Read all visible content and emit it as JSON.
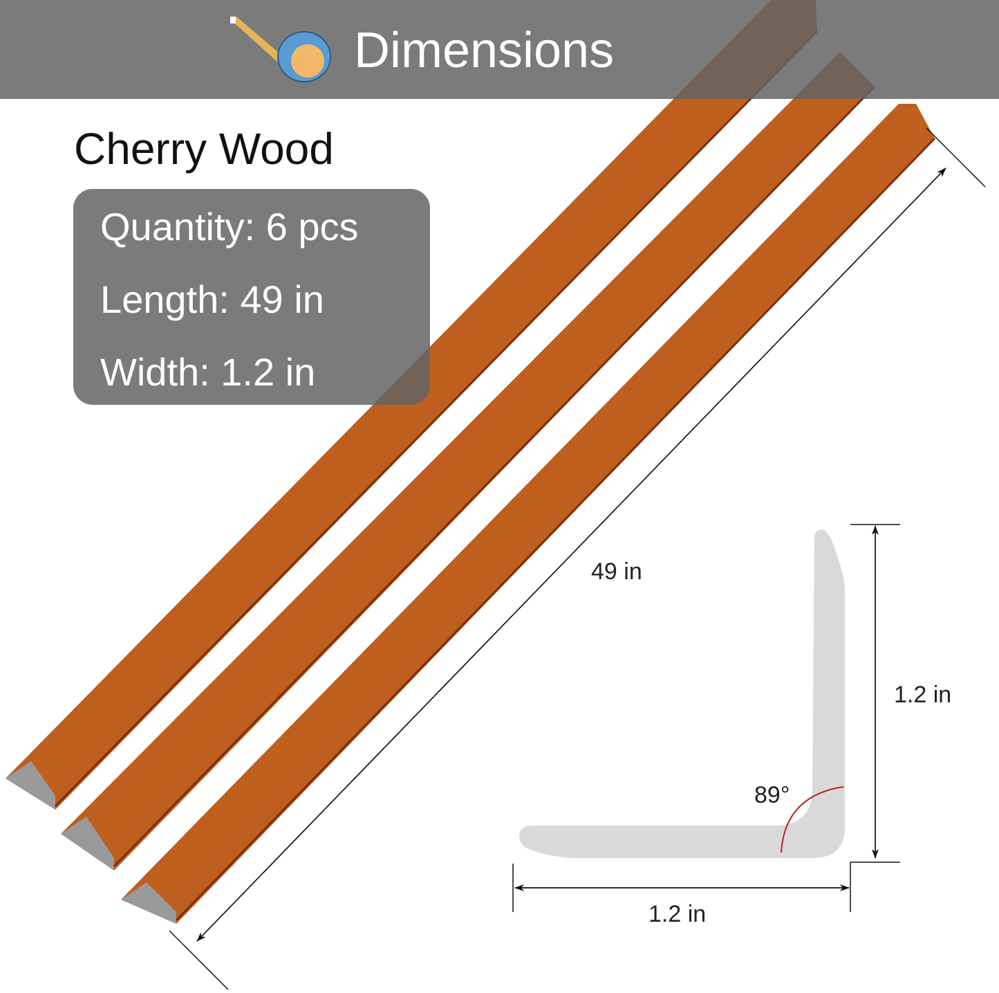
{
  "header": {
    "title": "Dimensions",
    "icon": "tape-measure-icon"
  },
  "product": {
    "name": "Cherry Wood"
  },
  "specs": {
    "quantity": "Quantity:  6 pcs",
    "length": "Length: 49 in",
    "width": "Width: 1.2 in"
  },
  "diagram": {
    "length_label": "49 in",
    "height_label": "1.2 in",
    "width_label": "1.2 in",
    "angle_label": "89°"
  },
  "colors": {
    "wood": "#b5541a",
    "wood_dark": "#8a3a10",
    "profile": "#d9d9d9",
    "angle_arc": "#b22222",
    "header_band": "#6e6e6e"
  }
}
